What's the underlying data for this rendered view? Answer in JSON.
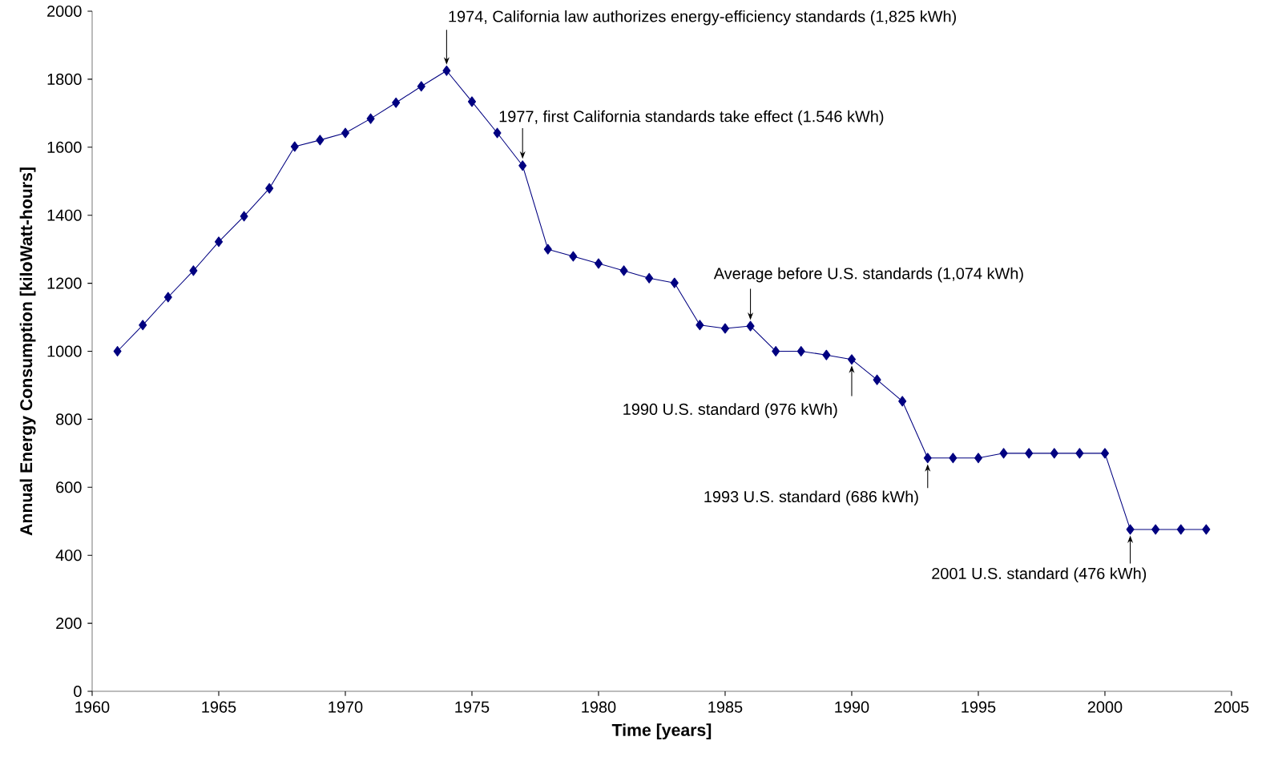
{
  "chart_data": {
    "type": "line",
    "xlabel": "Time [years]",
    "ylabel": "Annual Energy Consumption [kiloWatt-hours]",
    "x": [
      1961,
      1962,
      1963,
      1964,
      1965,
      1966,
      1967,
      1968,
      1969,
      1970,
      1971,
      1972,
      1973,
      1974,
      1975,
      1976,
      1977,
      1978,
      1979,
      1980,
      1981,
      1982,
      1983,
      1984,
      1985,
      1986,
      1987,
      1988,
      1989,
      1990,
      1991,
      1992,
      1993,
      1994,
      1995,
      1996,
      1997,
      1998,
      1999,
      2000,
      2001,
      2002,
      2003,
      2004
    ],
    "series": [
      {
        "color": "#000080",
        "values": [
          1000,
          1077,
          1159,
          1237,
          1322,
          1397,
          1479,
          1602,
          1621,
          1642,
          1684,
          1731,
          1779,
          1825,
          1734,
          1642,
          1546,
          1300,
          1279,
          1258,
          1237,
          1215,
          1201,
          1077,
          1067,
          1074,
          1000,
          1000,
          989,
          976,
          916,
          853,
          686,
          686,
          686,
          700,
          700,
          700,
          700,
          700,
          476,
          476,
          476,
          476
        ]
      }
    ],
    "xlim": [
      1960,
      2005
    ],
    "xticks": [
      1960,
      1965,
      1970,
      1975,
      1980,
      1985,
      1990,
      1995,
      2000,
      2005
    ],
    "ylim": [
      0,
      2000
    ],
    "yticks": [
      0,
      200,
      400,
      600,
      800,
      1000,
      1200,
      1400,
      1600,
      1800,
      2000
    ],
    "grid": false,
    "marker": "diamond",
    "line_style": "solid",
    "annotations": [
      {
        "text": "1974, California law  authorizes energy-efficiency standards (1,825 kWh)",
        "x": 1974,
        "y": 1825
      },
      {
        "text": "1977, first California  standards take effect (1.546 kWh)",
        "x": 1977,
        "y": 1546
      },
      {
        "text": "Average before U.S. standards (1,074 kWh)",
        "x": 1986,
        "y": 1074
      },
      {
        "text": "1990 U.S. standard (976 kWh)",
        "x": 1990,
        "y": 976
      },
      {
        "text": "1993 U.S. standard (686 kWh)",
        "x": 1993,
        "y": 686
      },
      {
        "text": "2001 U.S. standard (476 kWh)",
        "x": 2001,
        "y": 476
      }
    ]
  }
}
